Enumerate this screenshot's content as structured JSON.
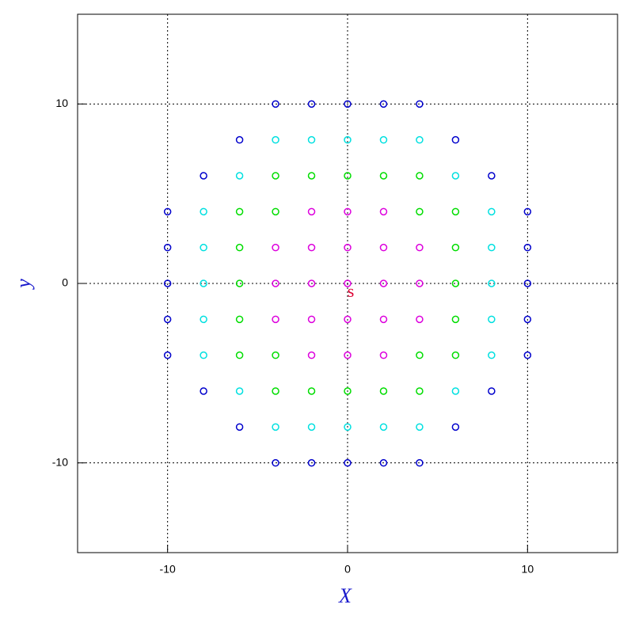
{
  "chart_data": {
    "type": "scatter",
    "xlabel": "X",
    "ylabel": "y",
    "xlim": [
      -15,
      15
    ],
    "ylim": [
      -15,
      15
    ],
    "xticks": [
      -10,
      0,
      10
    ],
    "yticks": [
      -10,
      0,
      10
    ],
    "grid": true,
    "annotations": [
      {
        "text": "s"
      }
    ],
    "series": [
      {
        "color": "#0000cc",
        "x": [
          -4,
          -2,
          0,
          2,
          4,
          -6,
          6,
          -8,
          8,
          -10,
          10,
          -10,
          10,
          -10,
          10,
          -10,
          10,
          -10,
          10,
          -8,
          8,
          -6,
          6,
          -4,
          -2,
          0,
          2,
          4
        ],
        "y": [
          10,
          10,
          10,
          10,
          10,
          8,
          8,
          6,
          6,
          4,
          4,
          2,
          2,
          0,
          0,
          -2,
          -2,
          -4,
          -4,
          -6,
          -6,
          -8,
          -8,
          -10,
          -10,
          -10,
          -10,
          -10
        ]
      },
      {
        "color": "#00e0e0",
        "x": [
          -4,
          -2,
          0,
          2,
          4,
          -6,
          6,
          -8,
          8,
          -8,
          8,
          -8,
          8,
          -8,
          8,
          -8,
          8,
          -6,
          6,
          -4,
          -2,
          0,
          2,
          4
        ],
        "y": [
          8,
          8,
          8,
          8,
          8,
          6,
          6,
          4,
          4,
          2,
          2,
          0,
          0,
          -2,
          -2,
          -4,
          -4,
          -6,
          -6,
          -8,
          -8,
          -8,
          -8,
          -8
        ]
      },
      {
        "color": "#00dd00",
        "x": [
          -4,
          -2,
          0,
          2,
          4,
          -6,
          -4,
          4,
          6,
          -6,
          6,
          -6,
          6,
          -6,
          6,
          -6,
          -4,
          4,
          6,
          -4,
          -2,
          0,
          2,
          4
        ],
        "y": [
          6,
          6,
          6,
          6,
          6,
          4,
          4,
          4,
          4,
          2,
          2,
          0,
          0,
          -2,
          -2,
          -4,
          -4,
          -4,
          -4,
          -6,
          -6,
          -6,
          -6,
          -6
        ]
      },
      {
        "color": "#dd00dd",
        "x": [
          -2,
          0,
          2,
          -4,
          -2,
          0,
          2,
          4,
          -4,
          -2,
          0,
          2,
          4,
          -4,
          -2,
          0,
          2,
          4,
          -2,
          0,
          2
        ],
        "y": [
          4,
          4,
          4,
          2,
          2,
          2,
          2,
          2,
          0,
          0,
          0,
          0,
          0,
          -2,
          -2,
          -2,
          -2,
          -2,
          -4,
          -4,
          -4
        ]
      }
    ]
  }
}
